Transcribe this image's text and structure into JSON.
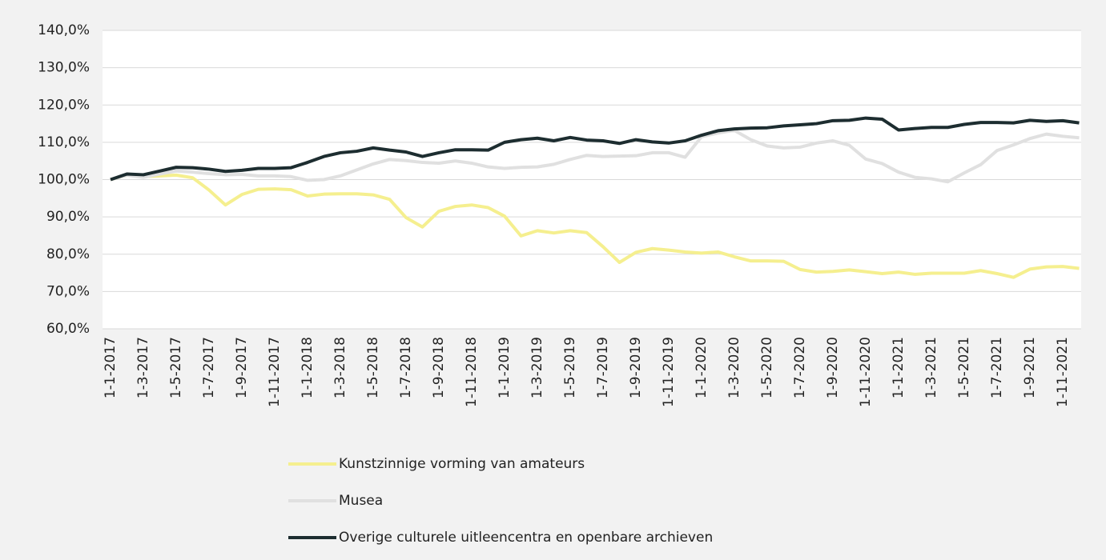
{
  "chart_data": {
    "type": "line",
    "categories": [
      "1-1-2017",
      null,
      "1-3-2017",
      null,
      "1-5-2017",
      null,
      "1-7-2017",
      null,
      "1-9-2017",
      null,
      "1-11-2017",
      null,
      "1-1-2018",
      null,
      "1-3-2018",
      null,
      "1-5-2018",
      null,
      "1-7-2018",
      null,
      "1-9-2018",
      null,
      "1-11-2018",
      null,
      "1-1-2019",
      null,
      "1-3-2019",
      null,
      "1-5-2019",
      null,
      "1-7-2019",
      null,
      "1-9-2019",
      null,
      "1-11-2019",
      null,
      "1-1-2020",
      null,
      "1-3-2020",
      null,
      "1-5-2020",
      null,
      "1-7-2020",
      null,
      "1-9-2020",
      null,
      "1-11-2020",
      null,
      "1-1-2021",
      null,
      "1-3-2021",
      null,
      "1-5-2021",
      null,
      "1-7-2021",
      null,
      "1-9-2021",
      null,
      "1-11-2021",
      null
    ],
    "series": [
      {
        "name": "Kunstzinnige vorming van amateurs",
        "color": "#f5ef8f",
        "values": [
          100,
          101.2,
          100.8,
          101.0,
          101.2,
          100.5,
          97.2,
          93.2,
          96.0,
          97.4,
          97.5,
          97.3,
          95.6,
          96.1,
          96.2,
          96.2,
          95.9,
          94.7,
          89.8,
          87.3,
          91.5,
          92.8,
          93.2,
          92.5,
          90.2,
          84.9,
          86.3,
          85.7,
          86.3,
          85.8,
          82.0,
          77.8,
          80.5,
          81.5,
          81.1,
          80.6,
          80.3,
          80.6,
          79.3,
          78.2,
          78.2,
          78.1,
          75.9,
          75.2,
          75.4,
          75.8,
          75.3,
          74.8,
          75.2,
          74.6,
          74.9,
          74.9,
          74.9,
          75.6,
          74.8,
          73.8,
          76.0,
          76.6,
          76.7,
          76.2
        ]
      },
      {
        "name": "Musea",
        "color": "#e0e0e0",
        "values": [
          100,
          101.2,
          100.6,
          101.5,
          102.3,
          102.0,
          101.6,
          101.3,
          101.4,
          101.0,
          101.0,
          100.8,
          99.8,
          100.0,
          101.0,
          102.6,
          104.2,
          105.4,
          105.1,
          104.6,
          104.4,
          105.0,
          104.4,
          103.4,
          103.0,
          103.3,
          103.4,
          104.1,
          105.4,
          106.5,
          106.2,
          106.3,
          106.4,
          107.2,
          107.2,
          106.0,
          111.5,
          112.5,
          113.2,
          110.7,
          109.0,
          108.5,
          108.7,
          109.8,
          110.4,
          109.2,
          105.5,
          104.3,
          102.0,
          100.6,
          100.2,
          99.4,
          101.8,
          104.0,
          107.8,
          109.3,
          111.0,
          112.2,
          111.6,
          111.2
        ]
      },
      {
        "name": "Overige culturele uitleencentra en openbare archieven",
        "color": "#1d2d30",
        "values": [
          100,
          101.5,
          101.3,
          102.3,
          103.3,
          103.2,
          102.8,
          102.2,
          102.5,
          103.0,
          103.0,
          103.2,
          104.6,
          106.2,
          107.2,
          107.6,
          108.5,
          107.9,
          107.4,
          106.2,
          107.2,
          108.0,
          108.0,
          107.9,
          110.0,
          110.7,
          111.1,
          110.4,
          111.3,
          110.6,
          110.4,
          109.7,
          110.7,
          110.1,
          109.8,
          110.4,
          111.9,
          113.1,
          113.6,
          113.8,
          113.9,
          114.4,
          114.7,
          115.0,
          115.8,
          115.9,
          116.5,
          116.2,
          113.3,
          113.7,
          114.0,
          114.0,
          114.8,
          115.3,
          115.3,
          115.2,
          115.9,
          115.6,
          115.8,
          115.2
        ]
      }
    ],
    "ylim": [
      60,
      140
    ],
    "yticks": [
      {
        "value": 60,
        "label": "60,0%"
      },
      {
        "value": 70,
        "label": "70,0%"
      },
      {
        "value": 80,
        "label": "80,0%"
      },
      {
        "value": 90,
        "label": "90,0%"
      },
      {
        "value": 100,
        "label": "100,0%"
      },
      {
        "value": 110,
        "label": "110,0%"
      },
      {
        "value": 120,
        "label": "120,0%"
      },
      {
        "value": 130,
        "label": "130,0%"
      },
      {
        "value": 140,
        "label": "140,0%"
      }
    ],
    "grid": true
  }
}
